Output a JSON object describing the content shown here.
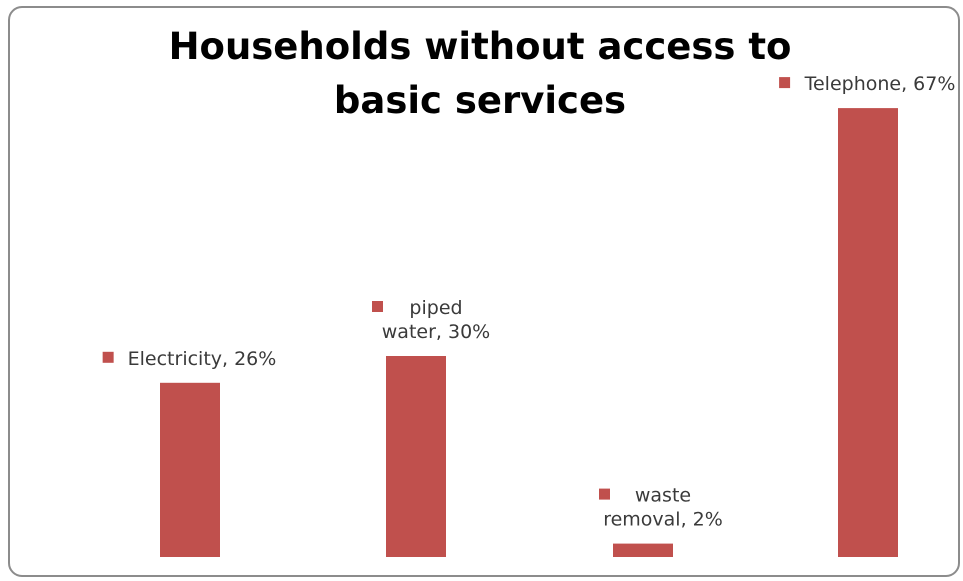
{
  "chart_data": {
    "type": "bar",
    "title": "Households without access to basic services",
    "categories": [
      "Electricity",
      "piped water",
      "waste removal",
      "Telephone"
    ],
    "values": [
      26,
      30,
      2,
      67
    ],
    "data_labels": [
      [
        "Electricity, 26%"
      ],
      [
        "piped",
        "water, 30%"
      ],
      [
        "waste",
        "removal, 2%"
      ],
      [
        "Telephone, 67%"
      ]
    ],
    "unit": "%",
    "ylim": [
      0,
      70
    ],
    "grid": false,
    "legend": "none",
    "bar_color": "#c0504d",
    "border_color": "#8c8c8c"
  }
}
